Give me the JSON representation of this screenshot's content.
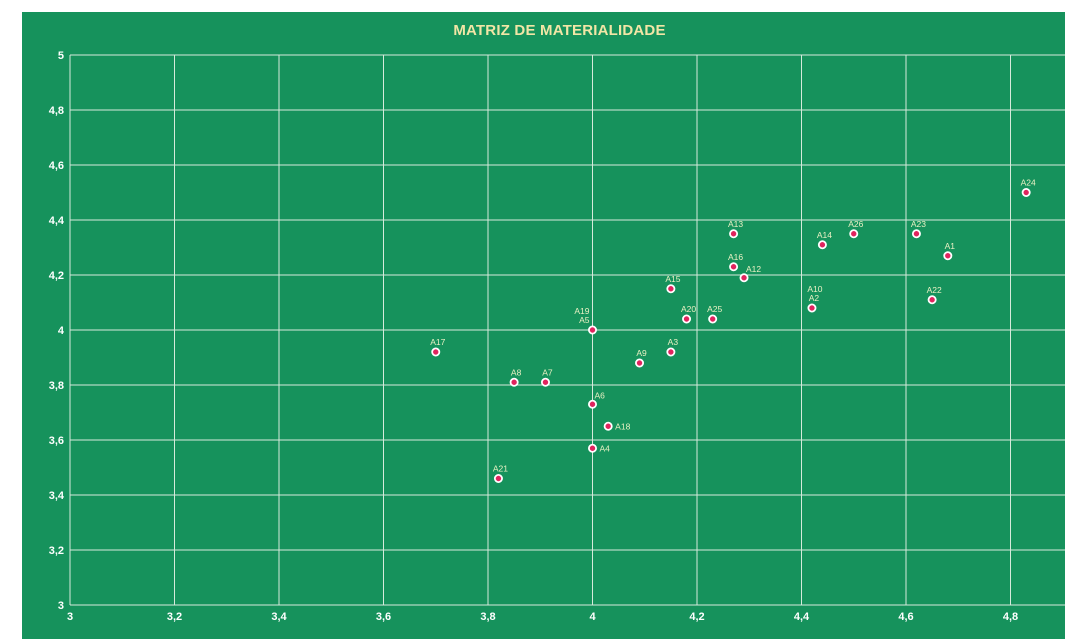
{
  "chart_data": {
    "type": "scatter",
    "title": "MATRIZ DE MATERIALIDADE",
    "xlabel": "",
    "ylabel": "",
    "xlim": [
      3,
      5
    ],
    "ylim": [
      3,
      5
    ],
    "x_ticks": [
      "3",
      "3,2",
      "3,4",
      "3,6",
      "3,8",
      "4",
      "4,2",
      "4,4",
      "4,6",
      "4,8",
      "5"
    ],
    "y_ticks": [
      "3",
      "3,2",
      "3,4",
      "3,6",
      "3,8",
      "4",
      "4,2",
      "4,4",
      "4,6",
      "4,8",
      "5"
    ],
    "grid": true,
    "colors": {
      "background": "#16925c",
      "grid": "#d6eadb",
      "marker_fill": "#e0245e",
      "marker_stroke": "#ffffff",
      "title": "#f2e6a6",
      "label": "#eaf1c4"
    },
    "points": [
      {
        "label": "A24",
        "x": 4.83,
        "y": 4.5,
        "pos": "above"
      },
      {
        "label": "A13",
        "x": 4.27,
        "y": 4.35,
        "pos": "above"
      },
      {
        "label": "A26",
        "x": 4.5,
        "y": 4.35,
        "pos": "above"
      },
      {
        "label": "A23",
        "x": 4.62,
        "y": 4.35,
        "pos": "above"
      },
      {
        "label": "A14",
        "x": 4.44,
        "y": 4.31,
        "pos": "above"
      },
      {
        "label": "A1",
        "x": 4.68,
        "y": 4.27,
        "pos": "above"
      },
      {
        "label": "A16",
        "x": 4.27,
        "y": 4.23,
        "pos": "above"
      },
      {
        "label": "A12",
        "x": 4.29,
        "y": 4.19,
        "pos": "above-right"
      },
      {
        "label": "A15",
        "x": 4.15,
        "y": 4.15,
        "pos": "above"
      },
      {
        "label": "A22",
        "x": 4.65,
        "y": 4.11,
        "pos": "above"
      },
      {
        "label": "A2",
        "x": 4.42,
        "y": 4.08,
        "pos": "above"
      },
      {
        "label": "A10",
        "x": 4.42,
        "y": 4.08,
        "pos": "above2"
      },
      {
        "label": "A20",
        "x": 4.18,
        "y": 4.04,
        "pos": "above"
      },
      {
        "label": "A25",
        "x": 4.23,
        "y": 4.04,
        "pos": "above"
      },
      {
        "label": "A5",
        "x": 4.0,
        "y": 4.0,
        "pos": "above-left"
      },
      {
        "label": "A19",
        "x": 4.0,
        "y": 4.0,
        "pos": "above-left2"
      },
      {
        "label": "A3",
        "x": 4.15,
        "y": 3.92,
        "pos": "above"
      },
      {
        "label": "A17",
        "x": 3.7,
        "y": 3.92,
        "pos": "above"
      },
      {
        "label": "A9",
        "x": 4.09,
        "y": 3.88,
        "pos": "above"
      },
      {
        "label": "A8",
        "x": 3.85,
        "y": 3.81,
        "pos": "above"
      },
      {
        "label": "A7",
        "x": 3.91,
        "y": 3.81,
        "pos": "above"
      },
      {
        "label": "A6",
        "x": 4.0,
        "y": 3.73,
        "pos": "above-right"
      },
      {
        "label": "A18",
        "x": 4.03,
        "y": 3.65,
        "pos": "right"
      },
      {
        "label": "A4",
        "x": 4.0,
        "y": 3.57,
        "pos": "right"
      },
      {
        "label": "A21",
        "x": 3.82,
        "y": 3.46,
        "pos": "above"
      }
    ]
  }
}
